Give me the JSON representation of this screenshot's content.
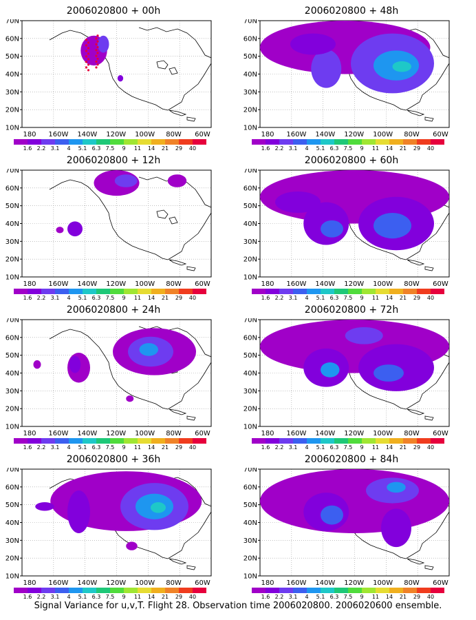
{
  "colorbar": {
    "levels": [
      "1.6",
      "2.2",
      "3.1",
      "4",
      "5.1",
      "6.3",
      "7.5",
      "9",
      "11",
      "14",
      "21",
      "29",
      "40"
    ],
    "colors": [
      "#a000c8",
      "#8200dc",
      "#6e3cf0",
      "#3c5ff0",
      "#1e96f0",
      "#1ec8c8",
      "#1ec878",
      "#50dc3c",
      "#a0e632",
      "#e6dc32",
      "#f0af1e",
      "#f08228",
      "#f03c1e",
      "#e6003c"
    ]
  },
  "axes": {
    "y_ticks": [
      "70N",
      "60N",
      "50N",
      "40N",
      "30N",
      "20N",
      "10N"
    ],
    "x_ticks": [
      "180",
      "160W",
      "140W",
      "120W",
      "100W",
      "80W",
      "60W"
    ]
  },
  "panels": [
    {
      "title": "2006020800 + 00h",
      "lead_hours": 0
    },
    {
      "title": "2006020800 + 48h",
      "lead_hours": 48
    },
    {
      "title": "2006020800 + 12h",
      "lead_hours": 12
    },
    {
      "title": "2006020800 + 60h",
      "lead_hours": 60
    },
    {
      "title": "2006020800 + 24h",
      "lead_hours": 24
    },
    {
      "title": "2006020800 + 72h",
      "lead_hours": 72
    },
    {
      "title": "2006020800 + 36h",
      "lead_hours": 36
    },
    {
      "title": "2006020800 + 84h",
      "lead_hours": 84
    }
  ],
  "caption": "Signal Variance for u,v,T. Flight 28. Observation time 2006020800. 2006020600 ensemble."
}
